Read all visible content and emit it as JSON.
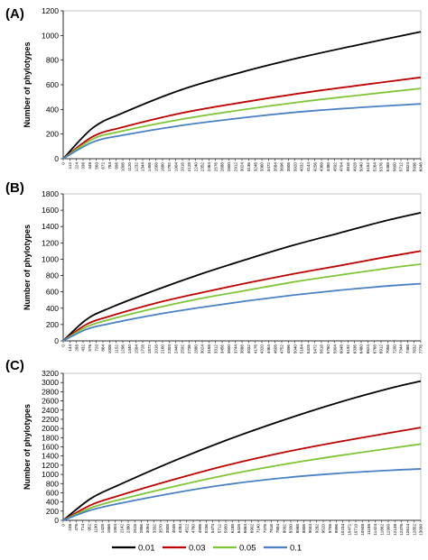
{
  "chart_data": [
    {
      "type": "line",
      "panel_label": "(A)",
      "ylabel": "Number of phylotypes",
      "ylim": [
        0,
        1200
      ],
      "ystep": 200,
      "x_ticks": [
        "0",
        "112",
        "224",
        "336",
        "448",
        "560",
        "672",
        "784",
        "896",
        "1008",
        "1120",
        "1232",
        "1344",
        "1456",
        "1568",
        "1680",
        "1792",
        "1904",
        "2016",
        "2128",
        "2240",
        "2352",
        "2464",
        "2576",
        "2688",
        "2800",
        "2912",
        "3024",
        "3136",
        "3248",
        "3360",
        "3472",
        "3584",
        "3696",
        "3808",
        "3920",
        "4032",
        "4144",
        "4256",
        "4368",
        "4480",
        "4592",
        "4704",
        "4816",
        "4928",
        "5040",
        "5152",
        "5264",
        "5376",
        "5488",
        "5600",
        "5712",
        "5824",
        "5936",
        "6048"
      ],
      "xlim": [
        0,
        6048
      ],
      "series": [
        {
          "name": "0.01",
          "color": "#000000",
          "x": [
            0,
            500,
            1000,
            2000,
            3000,
            4000,
            5000,
            6048
          ],
          "y": [
            0,
            250,
            370,
            560,
            700,
            820,
            925,
            1030
          ]
        },
        {
          "name": "0.03",
          "color": "#c00000",
          "x": [
            0,
            500,
            1000,
            2000,
            3000,
            4000,
            5000,
            6048
          ],
          "y": [
            0,
            180,
            255,
            370,
            455,
            530,
            595,
            660
          ]
        },
        {
          "name": "0.05",
          "color": "#7ec636",
          "x": [
            0,
            500,
            1000,
            2000,
            3000,
            4000,
            5000,
            6048
          ],
          "y": [
            0,
            160,
            225,
            320,
            395,
            460,
            515,
            570
          ]
        },
        {
          "name": "0.1",
          "color": "#4a81c4",
          "x": [
            0,
            500,
            1000,
            2000,
            3000,
            4000,
            5000,
            6048
          ],
          "y": [
            0,
            135,
            190,
            270,
            330,
            380,
            415,
            445
          ]
        }
      ]
    },
    {
      "type": "line",
      "panel_label": "(B)",
      "ylabel": "Number of phylotypes",
      "ylim": [
        0,
        1800
      ],
      "ystep": 200,
      "x_ticks": [
        "0",
        "144",
        "288",
        "432",
        "576",
        "720",
        "864",
        "1008",
        "1152",
        "1296",
        "1440",
        "1584",
        "1728",
        "1872",
        "2016",
        "2160",
        "2304",
        "2448",
        "2592",
        "2736",
        "2880",
        "3024",
        "3168",
        "3312",
        "3456",
        "3600",
        "3744",
        "3888",
        "4032",
        "4176",
        "4320",
        "4464",
        "4608",
        "4752",
        "4896",
        "5040",
        "5184",
        "5328",
        "5472",
        "5616",
        "5760",
        "5904",
        "6048",
        "6192",
        "6336",
        "6480",
        "6624",
        "6768",
        "6912",
        "7056",
        "7200",
        "7344",
        "7488",
        "7632",
        "7776"
      ],
      "xlim": [
        0,
        7776
      ],
      "series": [
        {
          "name": "0.01",
          "color": "#000000",
          "x": [
            0,
            500,
            1000,
            2000,
            3000,
            4000,
            5000,
            6000,
            7000,
            7776
          ],
          "y": [
            0,
            260,
            400,
            620,
            820,
            1000,
            1170,
            1320,
            1470,
            1570
          ]
        },
        {
          "name": "0.03",
          "color": "#c00000",
          "x": [
            0,
            500,
            1000,
            2000,
            3000,
            4000,
            5000,
            6000,
            7000,
            7776
          ],
          "y": [
            0,
            200,
            300,
            460,
            590,
            710,
            820,
            920,
            1025,
            1100
          ]
        },
        {
          "name": "0.05",
          "color": "#7ec636",
          "x": [
            0,
            500,
            1000,
            2000,
            3000,
            4000,
            5000,
            6000,
            7000,
            7776
          ],
          "y": [
            0,
            170,
            260,
            400,
            520,
            620,
            720,
            805,
            885,
            940
          ]
        },
        {
          "name": "0.1",
          "color": "#4a81c4",
          "x": [
            0,
            500,
            1000,
            2000,
            3000,
            4000,
            5000,
            6000,
            7000,
            7776
          ],
          "y": [
            0,
            140,
            210,
            320,
            410,
            490,
            560,
            620,
            670,
            700
          ]
        }
      ]
    },
    {
      "type": "line",
      "panel_label": "(C)",
      "ylabel": "Number of phylotypes",
      "ylim": [
        0,
        3200
      ],
      "ystep": 200,
      "x_ticks": [
        "0",
        "238",
        "476",
        "714",
        "952",
        "1190",
        "1428",
        "1666",
        "1904",
        "2142",
        "2380",
        "2618",
        "2856",
        "3094",
        "3332",
        "3570",
        "3808",
        "4046",
        "4284",
        "4522",
        "4760",
        "4998",
        "5236",
        "5474",
        "5712",
        "5950",
        "6188",
        "6426",
        "6664",
        "6902",
        "7140",
        "7378",
        "7616",
        "7854",
        "8092",
        "8330",
        "8568",
        "8806",
        "9044",
        "9282",
        "9520",
        "9758",
        "9996",
        "10234",
        "10472",
        "10710",
        "10948",
        "11186",
        "11424",
        "11662",
        "11900",
        "12138",
        "12376",
        "12614",
        "12852",
        "13090"
      ],
      "xlim": [
        0,
        13090
      ],
      "series": [
        {
          "name": "0.01",
          "color": "#000000",
          "x": [
            0,
            1000,
            2000,
            4000,
            6000,
            8000,
            10000,
            12000,
            13090
          ],
          "y": [
            0,
            470,
            760,
            1280,
            1750,
            2170,
            2550,
            2880,
            3030
          ]
        },
        {
          "name": "0.03",
          "color": "#c00000",
          "x": [
            0,
            1000,
            2000,
            4000,
            6000,
            8000,
            10000,
            12000,
            13090
          ],
          "y": [
            0,
            330,
            530,
            880,
            1200,
            1470,
            1700,
            1910,
            2020
          ]
        },
        {
          "name": "0.05",
          "color": "#7ec636",
          "x": [
            0,
            1000,
            2000,
            4000,
            6000,
            8000,
            10000,
            12000,
            13090
          ],
          "y": [
            0,
            270,
            440,
            730,
            990,
            1210,
            1400,
            1570,
            1660
          ]
        },
        {
          "name": "0.1",
          "color": "#4a81c4",
          "x": [
            0,
            1000,
            2000,
            4000,
            6000,
            8000,
            10000,
            12000,
            13090
          ],
          "y": [
            0,
            220,
            360,
            590,
            780,
            920,
            1020,
            1090,
            1120
          ]
        }
      ]
    }
  ],
  "legend": [
    {
      "label": "0.01",
      "color": "#000000"
    },
    {
      "label": "0.03",
      "color": "#c00000"
    },
    {
      "label": "0.05",
      "color": "#7ec636"
    },
    {
      "label": "0.1",
      "color": "#4a81c4"
    }
  ]
}
